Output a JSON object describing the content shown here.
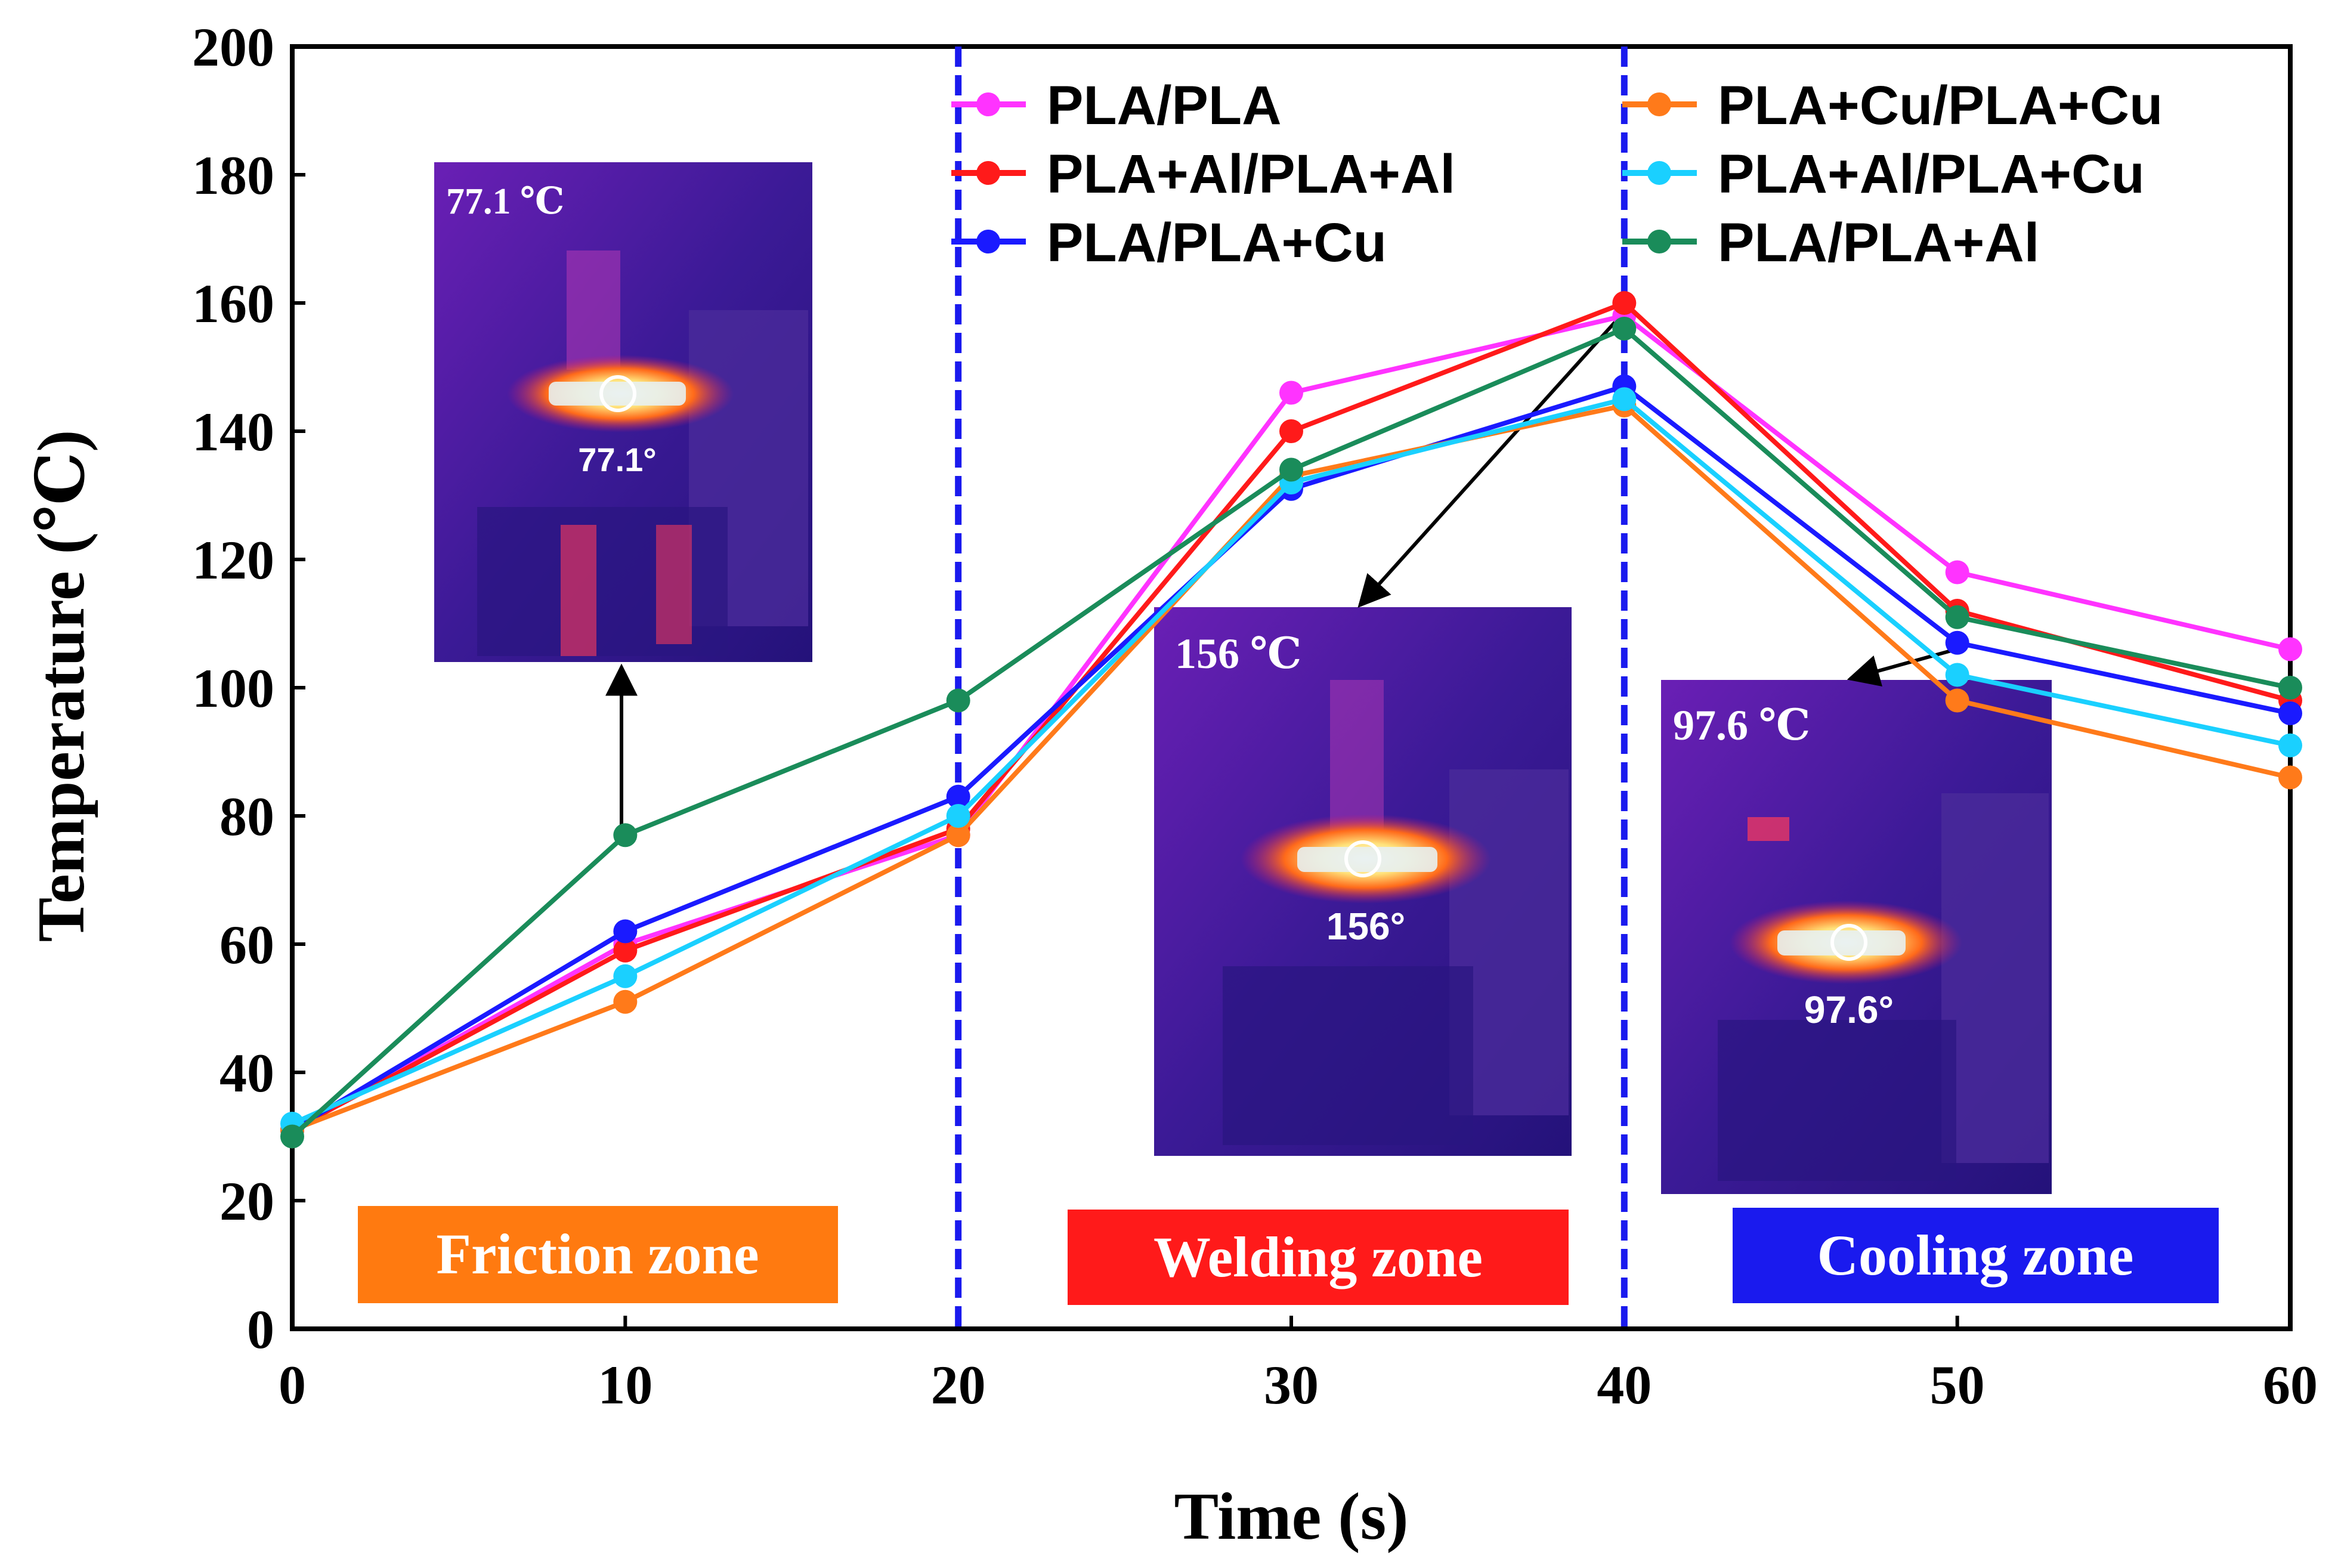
{
  "chart_data": {
    "type": "line",
    "xlabel": "Time (s)",
    "ylabel": "Temperature (℃)",
    "xlim": [
      0,
      60
    ],
    "ylim": [
      0,
      200
    ],
    "x": [
      0,
      10,
      20,
      30,
      40,
      50,
      60
    ],
    "x_ticks": [
      "0",
      "10",
      "20",
      "30",
      "40",
      "50",
      "60"
    ],
    "y_ticks": [
      "0",
      "20",
      "40",
      "60",
      "80",
      "100",
      "120",
      "140",
      "160",
      "180",
      "200"
    ],
    "series": [
      {
        "name": "PLA/PLA",
        "color": "#ff33ff",
        "values": [
          31,
          60,
          77,
          146,
          158,
          118,
          106
        ]
      },
      {
        "name": "PLA+Al/PLA+Al",
        "color": "#ff1a1a",
        "values": [
          31,
          59,
          78,
          140,
          160,
          112,
          98
        ]
      },
      {
        "name": "PLA/PLA+Cu",
        "color": "#1a1aff",
        "values": [
          31,
          62,
          83,
          131,
          147,
          107,
          96
        ]
      },
      {
        "name": "PLA+Cu/PLA+Cu",
        "color": "#ff7a1a",
        "values": [
          31,
          51,
          77,
          133,
          144,
          98,
          86
        ]
      },
      {
        "name": "PLA+Al/PLA+Cu",
        "color": "#1ad0ff",
        "values": [
          32,
          55,
          80,
          132,
          145,
          102,
          91
        ]
      },
      {
        "name": "PLA/PLA+Al",
        "color": "#1a8c5a",
        "values": [
          30,
          77,
          98,
          134,
          156,
          111,
          100
        ]
      }
    ],
    "zone_dividers": [
      20,
      40
    ],
    "zones": [
      {
        "label": "Friction zone",
        "color": "#ff7a10"
      },
      {
        "label": "Welding zone",
        "color": "#ff1a1a"
      },
      {
        "label": "Cooling zone",
        "color": "#1a1aee"
      }
    ],
    "insets": [
      {
        "title": "77.1 ℃",
        "reading": "77.1°"
      },
      {
        "title": "156 ℃",
        "reading": "156°"
      },
      {
        "title": "97.6 ℃",
        "reading": "97.6°"
      }
    ]
  }
}
